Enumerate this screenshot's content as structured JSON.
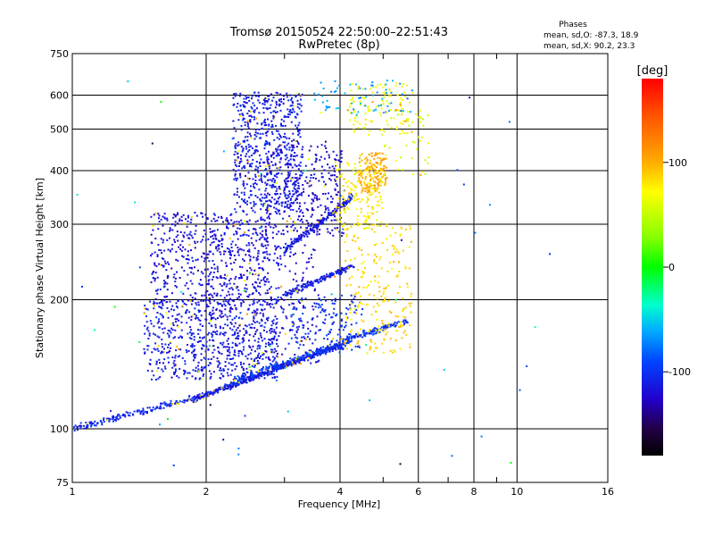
{
  "chart_data": {
    "type": "scatter",
    "title_line1": "Tromsø 20150524 22:50:00–22:51:43",
    "title_line2": "RwPretec (8p)",
    "xlabel": "Frequency [MHz]",
    "ylabel": "Stationary phase Virtual Height [km]",
    "x_scale": "log",
    "y_scale": "log",
    "xlim": [
      1,
      16
    ],
    "ylim": [
      75,
      750
    ],
    "x_ticks": [
      1,
      2,
      4,
      6,
      8,
      10,
      16
    ],
    "x_minor_ticks": [
      3,
      5,
      7,
      9
    ],
    "y_ticks": [
      75,
      100,
      200,
      300,
      400,
      500,
      600,
      750
    ],
    "grid": true,
    "legend_header": "Phases",
    "legend_line1": "mean, sd,O: -87.3, 18.9",
    "legend_line2": "mean, sd,X:  90.2, 23.3",
    "colorbar_label": "[deg]",
    "colorbar_ticks": [
      100,
      0,
      -100
    ],
    "colorbar_range": [
      -180,
      180
    ],
    "clusters": [
      {
        "x": [
          1.0,
          1.9
        ],
        "y": [
          100,
          118
        ],
        "phase": -105,
        "count": 170,
        "trend": true
      },
      {
        "x": [
          1.9,
          4.1
        ],
        "y": [
          118,
          158
        ],
        "phase": -110,
        "count": 520,
        "trend": true
      },
      {
        "x": [
          2.3,
          4.2
        ],
        "y": [
          130,
          160
        ],
        "phase": -95,
        "count": 160,
        "trend": true
      },
      {
        "x": [
          4.0,
          5.7
        ],
        "y": [
          160,
          178
        ],
        "phase": -100,
        "count": 120,
        "trend": true
      },
      {
        "x": [
          1.45,
          2.9
        ],
        "y": [
          130,
          200
        ],
        "phase": -112,
        "count": 650
      },
      {
        "x": [
          1.5,
          2.8
        ],
        "y": [
          195,
          320
        ],
        "phase": -118,
        "count": 520
      },
      {
        "x": [
          2.3,
          3.3
        ],
        "y": [
          320,
          610
        ],
        "phase": -110,
        "count": 650
      },
      {
        "x": [
          2.7,
          4.1
        ],
        "y": [
          280,
          460
        ],
        "phase": -122,
        "count": 300
      },
      {
        "x": [
          2.0,
          3.6
        ],
        "y": [
          140,
          310
        ],
        "phase": -118,
        "count": 350
      },
      {
        "x": [
          3.0,
          4.3
        ],
        "y": [
          205,
          240
        ],
        "phase": -110,
        "count": 170,
        "trend": true
      },
      {
        "x": [
          3.0,
          4.3
        ],
        "y": [
          260,
          350
        ],
        "phase": -112,
        "count": 200,
        "trend": true
      },
      {
        "x": [
          3.1,
          4.5
        ],
        "y": [
          150,
          205
        ],
        "phase": -100,
        "count": 150
      },
      {
        "x": [
          3.9,
          5.0
        ],
        "y": [
          290,
          420
        ],
        "phase": 75,
        "count": 170
      },
      {
        "x": [
          4.4,
          5.1
        ],
        "y": [
          355,
          440
        ],
        "phase": 100,
        "count": 150
      },
      {
        "x": [
          4.1,
          5.8
        ],
        "y": [
          150,
          300
        ],
        "phase": 85,
        "count": 220
      },
      {
        "x": [
          4.2,
          5.8
        ],
        "y": [
          480,
          640
        ],
        "phase": 70,
        "count": 110
      },
      {
        "x": [
          3.5,
          6.0
        ],
        "y": [
          540,
          650
        ],
        "phase": -60,
        "count": 70
      },
      {
        "x": [
          5.0,
          6.4
        ],
        "y": [
          380,
          560
        ],
        "phase": 60,
        "count": 50
      },
      {
        "x": [
          1.0,
          12.0
        ],
        "y": [
          78,
          650
        ],
        "phase": -60,
        "count": 60,
        "wide": true
      }
    ]
  }
}
